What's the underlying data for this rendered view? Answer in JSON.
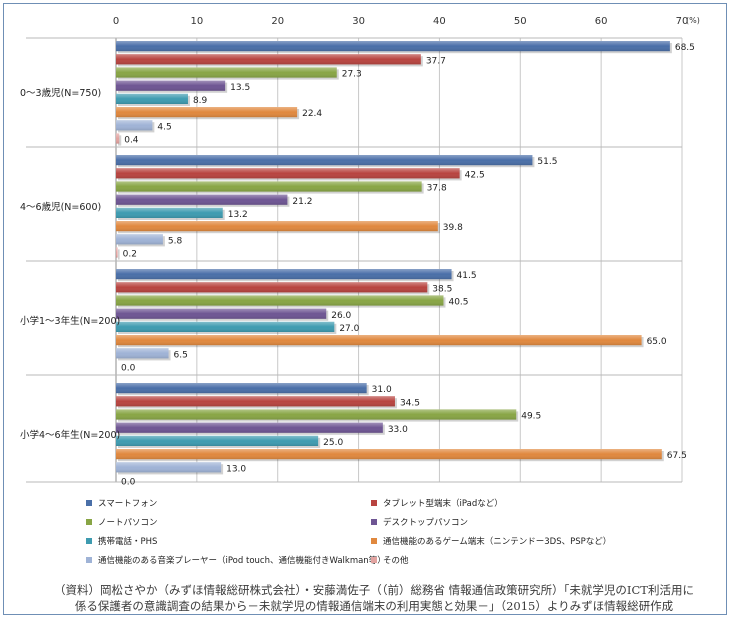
{
  "chart_data": {
    "type": "bar",
    "orientation": "horizontal",
    "unit": "(%)",
    "xlim": [
      0,
      70
    ],
    "xticks": [
      0,
      10,
      20,
      30,
      40,
      50,
      60,
      70
    ],
    "grid": true,
    "legend_position": "bottom",
    "categories": [
      "0〜3歳児(N=750)",
      "4〜6歳児(N=600)",
      "小学1〜3年生(N=200)",
      "小学4〜6年生(N=200)"
    ],
    "series": [
      {
        "name": "スマートフォン",
        "color": "#4a6fa8",
        "values": [
          68.5,
          51.5,
          41.5,
          31.0
        ],
        "labels": [
          "68.5",
          "51.5",
          "41.5",
          "31.0"
        ]
      },
      {
        "name": "タブレット型端末（iPadなど）",
        "color": "#b84440",
        "values": [
          37.7,
          42.5,
          38.5,
          34.5
        ],
        "labels": [
          "37.7",
          "42.5",
          "38.5",
          "34.5"
        ]
      },
      {
        "name": "ノートパソコン",
        "color": "#88a545",
        "values": [
          27.3,
          37.8,
          40.5,
          49.5
        ],
        "labels": [
          "27.3",
          "37.8",
          "40.5",
          "49.5"
        ]
      },
      {
        "name": "デスクトップパソコン",
        "color": "#6e5593",
        "values": [
          13.5,
          21.2,
          26.0,
          33.0
        ],
        "labels": [
          "13.5",
          "21.2",
          "26.0",
          "33.0"
        ]
      },
      {
        "name": "携帯電話・PHS",
        "color": "#3e9bb0",
        "values": [
          8.9,
          13.2,
          27.0,
          25.0
        ],
        "labels": [
          "8.9",
          "13.2",
          "27.0",
          "25.0"
        ]
      },
      {
        "name": "通信機能のあるゲーム端末（ニンテンドー3DS、PSPなど）",
        "color": "#e0883e",
        "values": [
          22.4,
          39.8,
          65.0,
          67.5
        ],
        "labels": [
          "22.4",
          "39.8",
          "65.0",
          "67.5"
        ]
      },
      {
        "name": "通信機能のある音楽プレーヤー（iPod touch、通信機能付きWalkman等）",
        "color": "#9fb3d6",
        "values": [
          4.5,
          5.8,
          6.5,
          13.0
        ],
        "labels": [
          "4.5",
          "5.8",
          "6.5",
          "13.0"
        ]
      },
      {
        "name": "その他",
        "color": "#e2a3a0",
        "values": [
          0.4,
          0.2,
          0.0,
          0.0
        ],
        "labels": [
          "0.4",
          "0.2",
          "0.0",
          "0.0"
        ]
      }
    ]
  },
  "source": {
    "line1": "（資料）岡松さやか（みずほ情報総研株式会社）・安藤満佐子（（前）総務省 情報通信政策研究所）「未就学児のICT利活用に",
    "line2": "係る保護者の意識調査の結果から－未就学児の情報通信端末の利用実態と効果－」（2015）よりみずほ情報総研作成"
  }
}
